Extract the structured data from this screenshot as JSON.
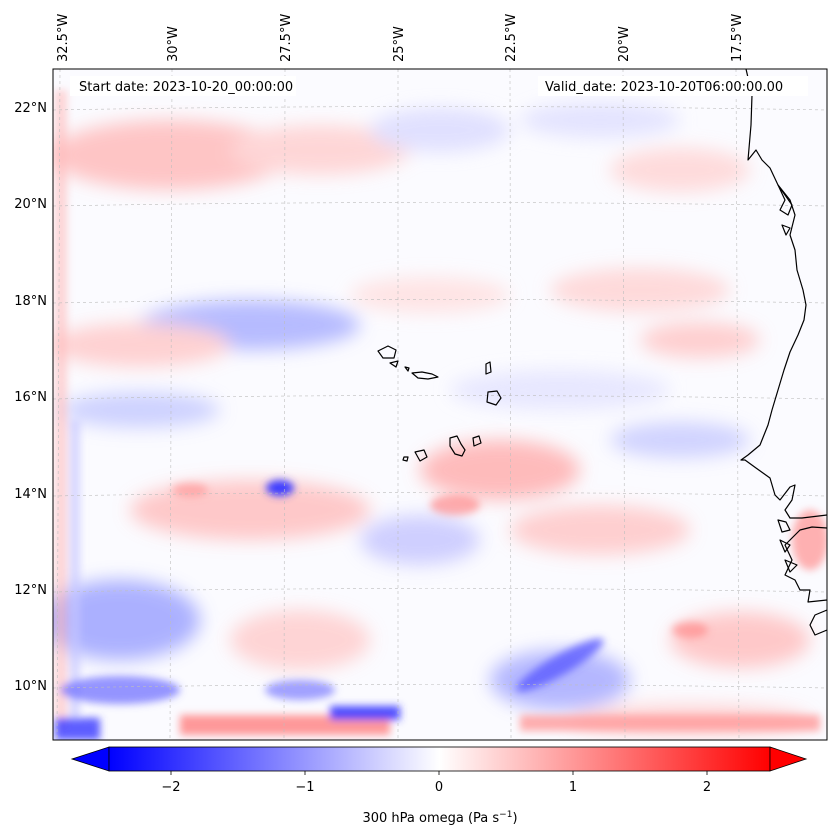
{
  "map": {
    "start_date_label": "Start date: 2023-10-20_00:00:00",
    "valid_date_label": "Valid_date: 2023-10-20T06:00:00.00",
    "lon_labels": [
      "32.5°W",
      "30°W",
      "27.5°W",
      "25°W",
      "22.5°W",
      "20°W",
      "17.5°W"
    ],
    "lat_labels": [
      "22°N",
      "20°N",
      "18°N",
      "16°N",
      "14°N",
      "12°N",
      "10°N"
    ],
    "field": "300 hPa omega"
  },
  "colorbar": {
    "label_main": "300 hPa omega (Pa s",
    "label_sup": "−1",
    "label_end": ")",
    "ticks": [
      "−2",
      "−1",
      "0",
      "1",
      "2"
    ],
    "min": -2.7,
    "max": 2.7,
    "colors": {
      "low": "#0000ff",
      "mid": "#ffffff",
      "high": "#ff0000"
    }
  },
  "colors": {
    "coastline": "#000000",
    "gridline": "#bdbdbd"
  }
}
